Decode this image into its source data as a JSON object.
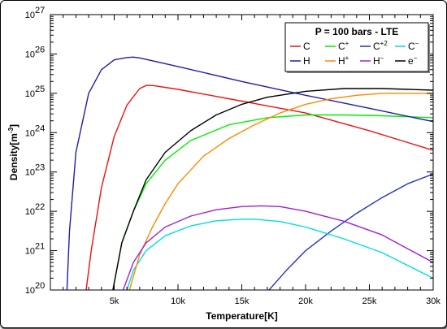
{
  "chart_data": {
    "type": "line",
    "legend_title": "P = 100 bars - LTE",
    "xlabel": "Temperature[K]",
    "ylabel": "Density[m",
    "ylabel_exp": "-3",
    "ylabel_close": "]",
    "x_scale": "linear",
    "y_scale": "log",
    "xlim": [
      0,
      30000
    ],
    "ylim_exp": [
      20,
      27
    ],
    "x_ticks": [
      {
        "value": 5000,
        "label": "5k"
      },
      {
        "value": 10000,
        "label": "10k"
      },
      {
        "value": 15000,
        "label": "15k"
      },
      {
        "value": 20000,
        "label": "20k"
      },
      {
        "value": 25000,
        "label": "25k"
      },
      {
        "value": 30000,
        "label": "30k"
      }
    ],
    "y_ticks": [
      {
        "exp": 20,
        "base": "10",
        "sup": "20"
      },
      {
        "exp": 21,
        "base": "10",
        "sup": "21"
      },
      {
        "exp": 22,
        "base": "10",
        "sup": "22"
      },
      {
        "exp": 23,
        "base": "10",
        "sup": "23"
      },
      {
        "exp": 24,
        "base": "10",
        "sup": "24"
      },
      {
        "exp": 25,
        "base": "10",
        "sup": "25"
      },
      {
        "exp": 26,
        "base": "10",
        "sup": "26"
      },
      {
        "exp": 27,
        "base": "10",
        "sup": "27"
      }
    ],
    "legend_placement": "top-right",
    "series": [
      {
        "name": "C",
        "sup": "",
        "color": "#ee1111",
        "x": [
          2800,
          3200,
          4000,
          5000,
          6000,
          7000,
          7500,
          8000,
          10000,
          15000,
          20000,
          25000,
          30000
        ],
        "log_y": [
          20.0,
          21.0,
          22.6,
          23.9,
          24.7,
          25.12,
          25.2,
          25.2,
          25.1,
          24.8,
          24.5,
          24.05,
          23.55
        ]
      },
      {
        "name": "C",
        "sup": "+",
        "color": "#00ee00",
        "x": [
          4900,
          5600,
          6500,
          7500,
          9000,
          11000,
          14000,
          17000,
          20000,
          23000,
          26000,
          30000
        ],
        "log_y": [
          20.0,
          21.2,
          22.0,
          22.7,
          23.3,
          23.8,
          24.2,
          24.38,
          24.45,
          24.45,
          24.43,
          24.38
        ]
      },
      {
        "name": "C",
        "sup": "+2",
        "color": "#2233bb",
        "x": [
          17000,
          18500,
          20000,
          22000,
          24000,
          26000,
          28000,
          30000
        ],
        "log_y": [
          19.95,
          20.5,
          21.0,
          21.5,
          21.95,
          22.35,
          22.7,
          22.95
        ]
      },
      {
        "name": "C",
        "sup": "−",
        "color": "#00dddd",
        "x": [
          6000,
          6500,
          7500,
          9000,
          11000,
          13000,
          15000,
          16000,
          18000,
          20000,
          23000,
          26000,
          30000
        ],
        "log_y": [
          20.0,
          20.5,
          21.0,
          21.38,
          21.63,
          21.76,
          21.8,
          21.8,
          21.74,
          21.6,
          21.3,
          20.95,
          20.3
        ]
      },
      {
        "name": "H",
        "sup": "",
        "color": "#1e1ea8",
        "x": [
          1300,
          1500,
          2000,
          3000,
          4000,
          5000,
          6000,
          6500,
          7000,
          10000,
          15000,
          20000,
          25000,
          30000
        ],
        "log_y": [
          20.0,
          21.5,
          23.5,
          25.0,
          25.6,
          25.85,
          25.91,
          25.92,
          25.9,
          25.68,
          25.3,
          24.95,
          24.62,
          24.28
        ]
      },
      {
        "name": "H",
        "sup": "+",
        "color": "#ff8800",
        "x": [
          6200,
          7000,
          8000,
          9000,
          10000,
          12000,
          14000,
          16000,
          18000,
          20000,
          22000,
          24000,
          26000,
          28000,
          30000
        ],
        "log_y": [
          20.0,
          20.9,
          21.6,
          22.2,
          22.7,
          23.4,
          23.85,
          24.2,
          24.5,
          24.72,
          24.86,
          24.95,
          25.0,
          25.0,
          25.0
        ]
      },
      {
        "name": "H",
        "sup": "−",
        "color": "#9922dd",
        "x": [
          5700,
          6500,
          7500,
          9000,
          11000,
          13000,
          15000,
          16500,
          18000,
          20000,
          23000,
          26000,
          30000
        ],
        "log_y": [
          20.0,
          20.7,
          21.2,
          21.6,
          21.88,
          22.04,
          22.12,
          22.14,
          22.12,
          22.0,
          21.75,
          21.4,
          20.7
        ]
      },
      {
        "name": "e",
        "sup": "−",
        "color": "#000000",
        "x": [
          4900,
          5600,
          6500,
          7500,
          9000,
          11000,
          13000,
          15000,
          17000,
          20000,
          23000,
          26000,
          28000,
          30000
        ],
        "log_y": [
          20.0,
          21.2,
          22.0,
          22.8,
          23.5,
          24.05,
          24.45,
          24.72,
          24.9,
          25.05,
          25.12,
          25.12,
          25.1,
          25.08
        ]
      }
    ]
  }
}
